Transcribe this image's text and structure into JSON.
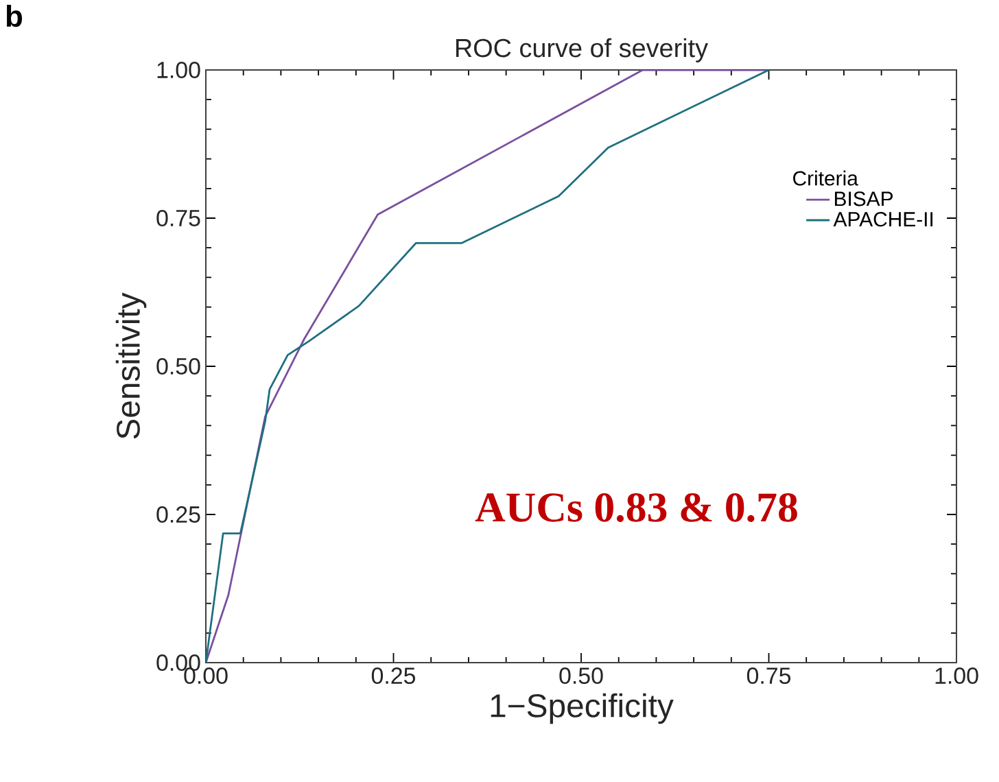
{
  "chart_data": {
    "type": "line",
    "title": "ROC curve of severity",
    "xlabel": "1−Specificity",
    "ylabel": "Sensitivity",
    "legend_title": "Criteria",
    "legend": "top right",
    "annotations": [
      "b",
      "AUCs 0.83 & 0.78"
    ],
    "xlim": [
      0,
      1
    ],
    "ylim": [
      0,
      1
    ],
    "xticks": [
      {
        "value": 0,
        "label": "0.00"
      },
      {
        "value": 0.25,
        "label": "0.25"
      },
      {
        "value": 0.5,
        "label": "0.50"
      },
      {
        "value": 0.75,
        "label": "0.75"
      },
      {
        "value": 1,
        "label": "1.00"
      }
    ],
    "yticks": [
      {
        "value": 0,
        "label": "0.00"
      },
      {
        "value": 0.25,
        "label": "0.25"
      },
      {
        "value": 0.5,
        "label": "0.50"
      },
      {
        "value": 0.75,
        "label": "0.75"
      },
      {
        "value": 1,
        "label": "1.00"
      }
    ],
    "series": [
      {
        "name": "BISAP",
        "color": "#7b4f9e",
        "x": [
          0,
          0.03,
          0.079,
          0.131,
          0.229,
          0.582,
          0.75
        ],
        "values": [
          0,
          0.114,
          0.415,
          0.546,
          0.756,
          1,
          1
        ]
      },
      {
        "name": "APACHE-II",
        "color": "#1f6f80",
        "x": [
          0,
          0.023,
          0.046,
          0.079,
          0.085,
          0.109,
          0.137,
          0.204,
          0.28,
          0.341,
          0.47,
          0.536,
          0.75
        ],
        "values": [
          0,
          0.218,
          0.218,
          0.407,
          0.461,
          0.519,
          0.542,
          0.602,
          0.708,
          0.708,
          0.787,
          0.869,
          1
        ]
      }
    ]
  }
}
